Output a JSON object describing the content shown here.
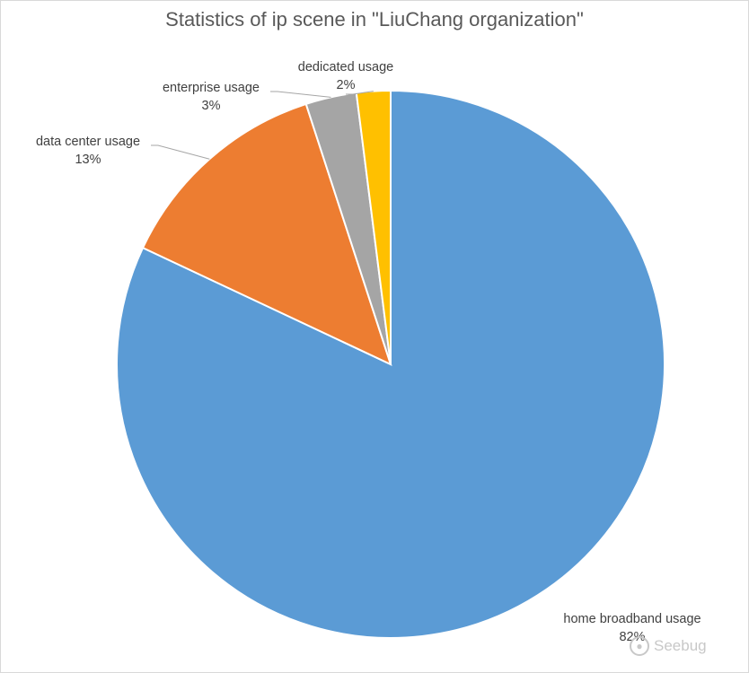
{
  "chart_data": {
    "type": "pie",
    "title": "Statistics of ip scene in \"LiuChang organization\"",
    "categories": [
      "home broadband usage",
      "data center usage",
      "enterprise usage",
      "dedicated usage"
    ],
    "values": [
      82,
      13,
      3,
      2
    ],
    "value_labels": [
      "82%",
      "13%",
      "3%",
      "2%"
    ],
    "colors": [
      "#5b9bd5",
      "#ed7d31",
      "#a5a5a5",
      "#ffc000"
    ],
    "start": "12 o'clock",
    "direction": "clockwise",
    "legend": "none"
  },
  "watermark": {
    "text": "Seebug",
    "icon": "seebug-logo-icon"
  }
}
